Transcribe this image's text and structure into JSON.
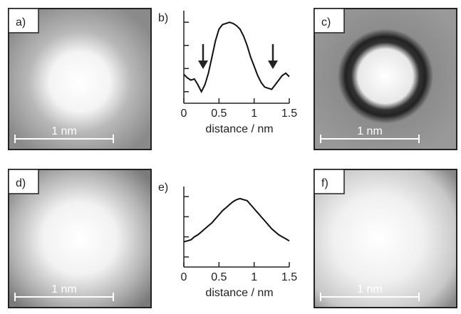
{
  "images": [
    {
      "label": "a)",
      "scale_bar": "1 nm"
    },
    {
      "label": "c)",
      "scale_bar": "1 nm"
    },
    {
      "label": "d)",
      "scale_bar": "1 nm"
    },
    {
      "label": "f)",
      "scale_bar": "1 nm"
    }
  ],
  "chart_data": [
    {
      "type": "line",
      "panel_label": "b)",
      "x_label": "distance / nm",
      "color": "#111111",
      "x": [
        0,
        0.05,
        0.1,
        0.15,
        0.2,
        0.25,
        0.3,
        0.35,
        0.4,
        0.45,
        0.5,
        0.55,
        0.6,
        0.65,
        0.7,
        0.75,
        0.8,
        0.85,
        0.9,
        0.95,
        1,
        1.05,
        1.1,
        1.15,
        1.2,
        1.25,
        1.3,
        1.35,
        1.4,
        1.45,
        1.5
      ],
      "values": [
        1.25,
        1.1,
        1.0,
        1.05,
        0.8,
        0.5,
        0.8,
        1.3,
        2.0,
        2.7,
        3.2,
        3.4,
        3.45,
        3.5,
        3.45,
        3.35,
        3.2,
        2.9,
        2.5,
        2.0,
        1.6,
        1.2,
        0.9,
        0.7,
        0.65,
        0.6,
        0.8,
        1.0,
        1.2,
        1.3,
        1.15
      ],
      "xlim": [
        0,
        1.5
      ],
      "xticks": [
        0,
        0.5,
        1,
        1.5
      ],
      "ylim": [
        0,
        4
      ],
      "yticks": [
        0.5,
        1.5,
        2.5,
        3.5
      ]
    },
    {
      "type": "line",
      "panel_label": "e)",
      "x_label": "distance / nm",
      "color": "#111111",
      "x": [
        0,
        0.05,
        0.1,
        0.15,
        0.2,
        0.25,
        0.3,
        0.35,
        0.4,
        0.45,
        0.5,
        0.55,
        0.6,
        0.65,
        0.7,
        0.75,
        0.8,
        0.85,
        0.9,
        0.95,
        1,
        1.05,
        1.1,
        1.15,
        1.2,
        1.25,
        1.3,
        1.35,
        1.4,
        1.45,
        1.5
      ],
      "values": [
        1.25,
        1.3,
        1.35,
        1.5,
        1.6,
        1.75,
        1.9,
        2.05,
        2.2,
        2.4,
        2.6,
        2.8,
        2.95,
        3.1,
        3.25,
        3.35,
        3.4,
        3.35,
        3.3,
        3.1,
        2.9,
        2.7,
        2.5,
        2.3,
        2.1,
        1.9,
        1.75,
        1.6,
        1.5,
        1.4,
        1.3
      ],
      "xlim": [
        0,
        1.5
      ],
      "xticks": [
        0,
        0.5,
        1,
        1.5
      ],
      "ylim": [
        0,
        4
      ],
      "yticks": [
        0.5,
        1.5,
        2.5,
        3.5
      ]
    }
  ]
}
